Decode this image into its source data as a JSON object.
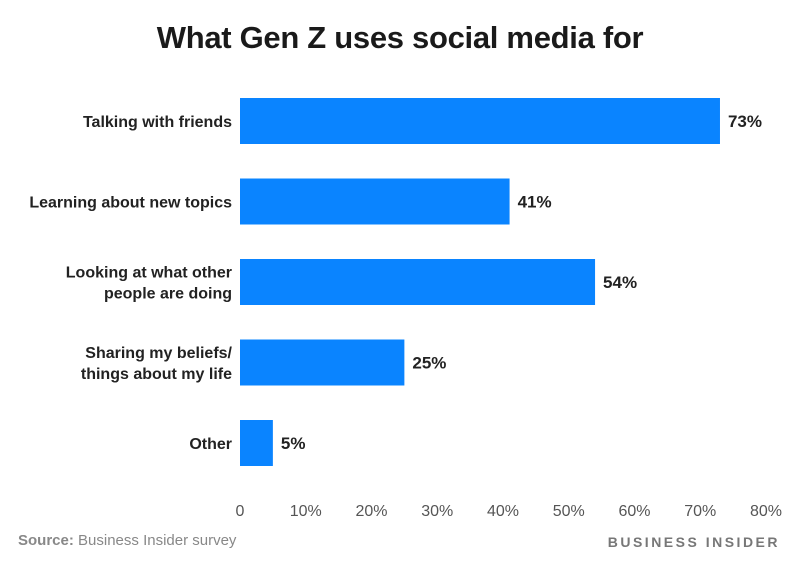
{
  "chart_data": {
    "type": "bar",
    "orientation": "horizontal",
    "title": "What Gen Z uses social media for",
    "categories": [
      [
        "Talking with friends"
      ],
      [
        "Learning about new topics"
      ],
      [
        "Looking at what other",
        "people are doing"
      ],
      [
        "Sharing my beliefs/",
        "things about my life"
      ],
      [
        "Other"
      ]
    ],
    "values": [
      73,
      41,
      54,
      25,
      5
    ],
    "data_labels": [
      "73%",
      "41%",
      "54%",
      "25%",
      "5%"
    ],
    "xlim": [
      0,
      80
    ],
    "xticks": [
      0,
      10,
      20,
      30,
      40,
      50,
      60,
      70,
      80
    ],
    "xtick_labels": [
      "0",
      "10%",
      "20%",
      "30%",
      "40%",
      "50%",
      "60%",
      "70%",
      "80%"
    ],
    "bar_color": "#0a84ff",
    "grid": false,
    "xlabel": "",
    "ylabel": ""
  },
  "footer": {
    "source_label": "Source:",
    "source_text": "Business Insider survey",
    "brand": "BUSINESS INSIDER"
  }
}
